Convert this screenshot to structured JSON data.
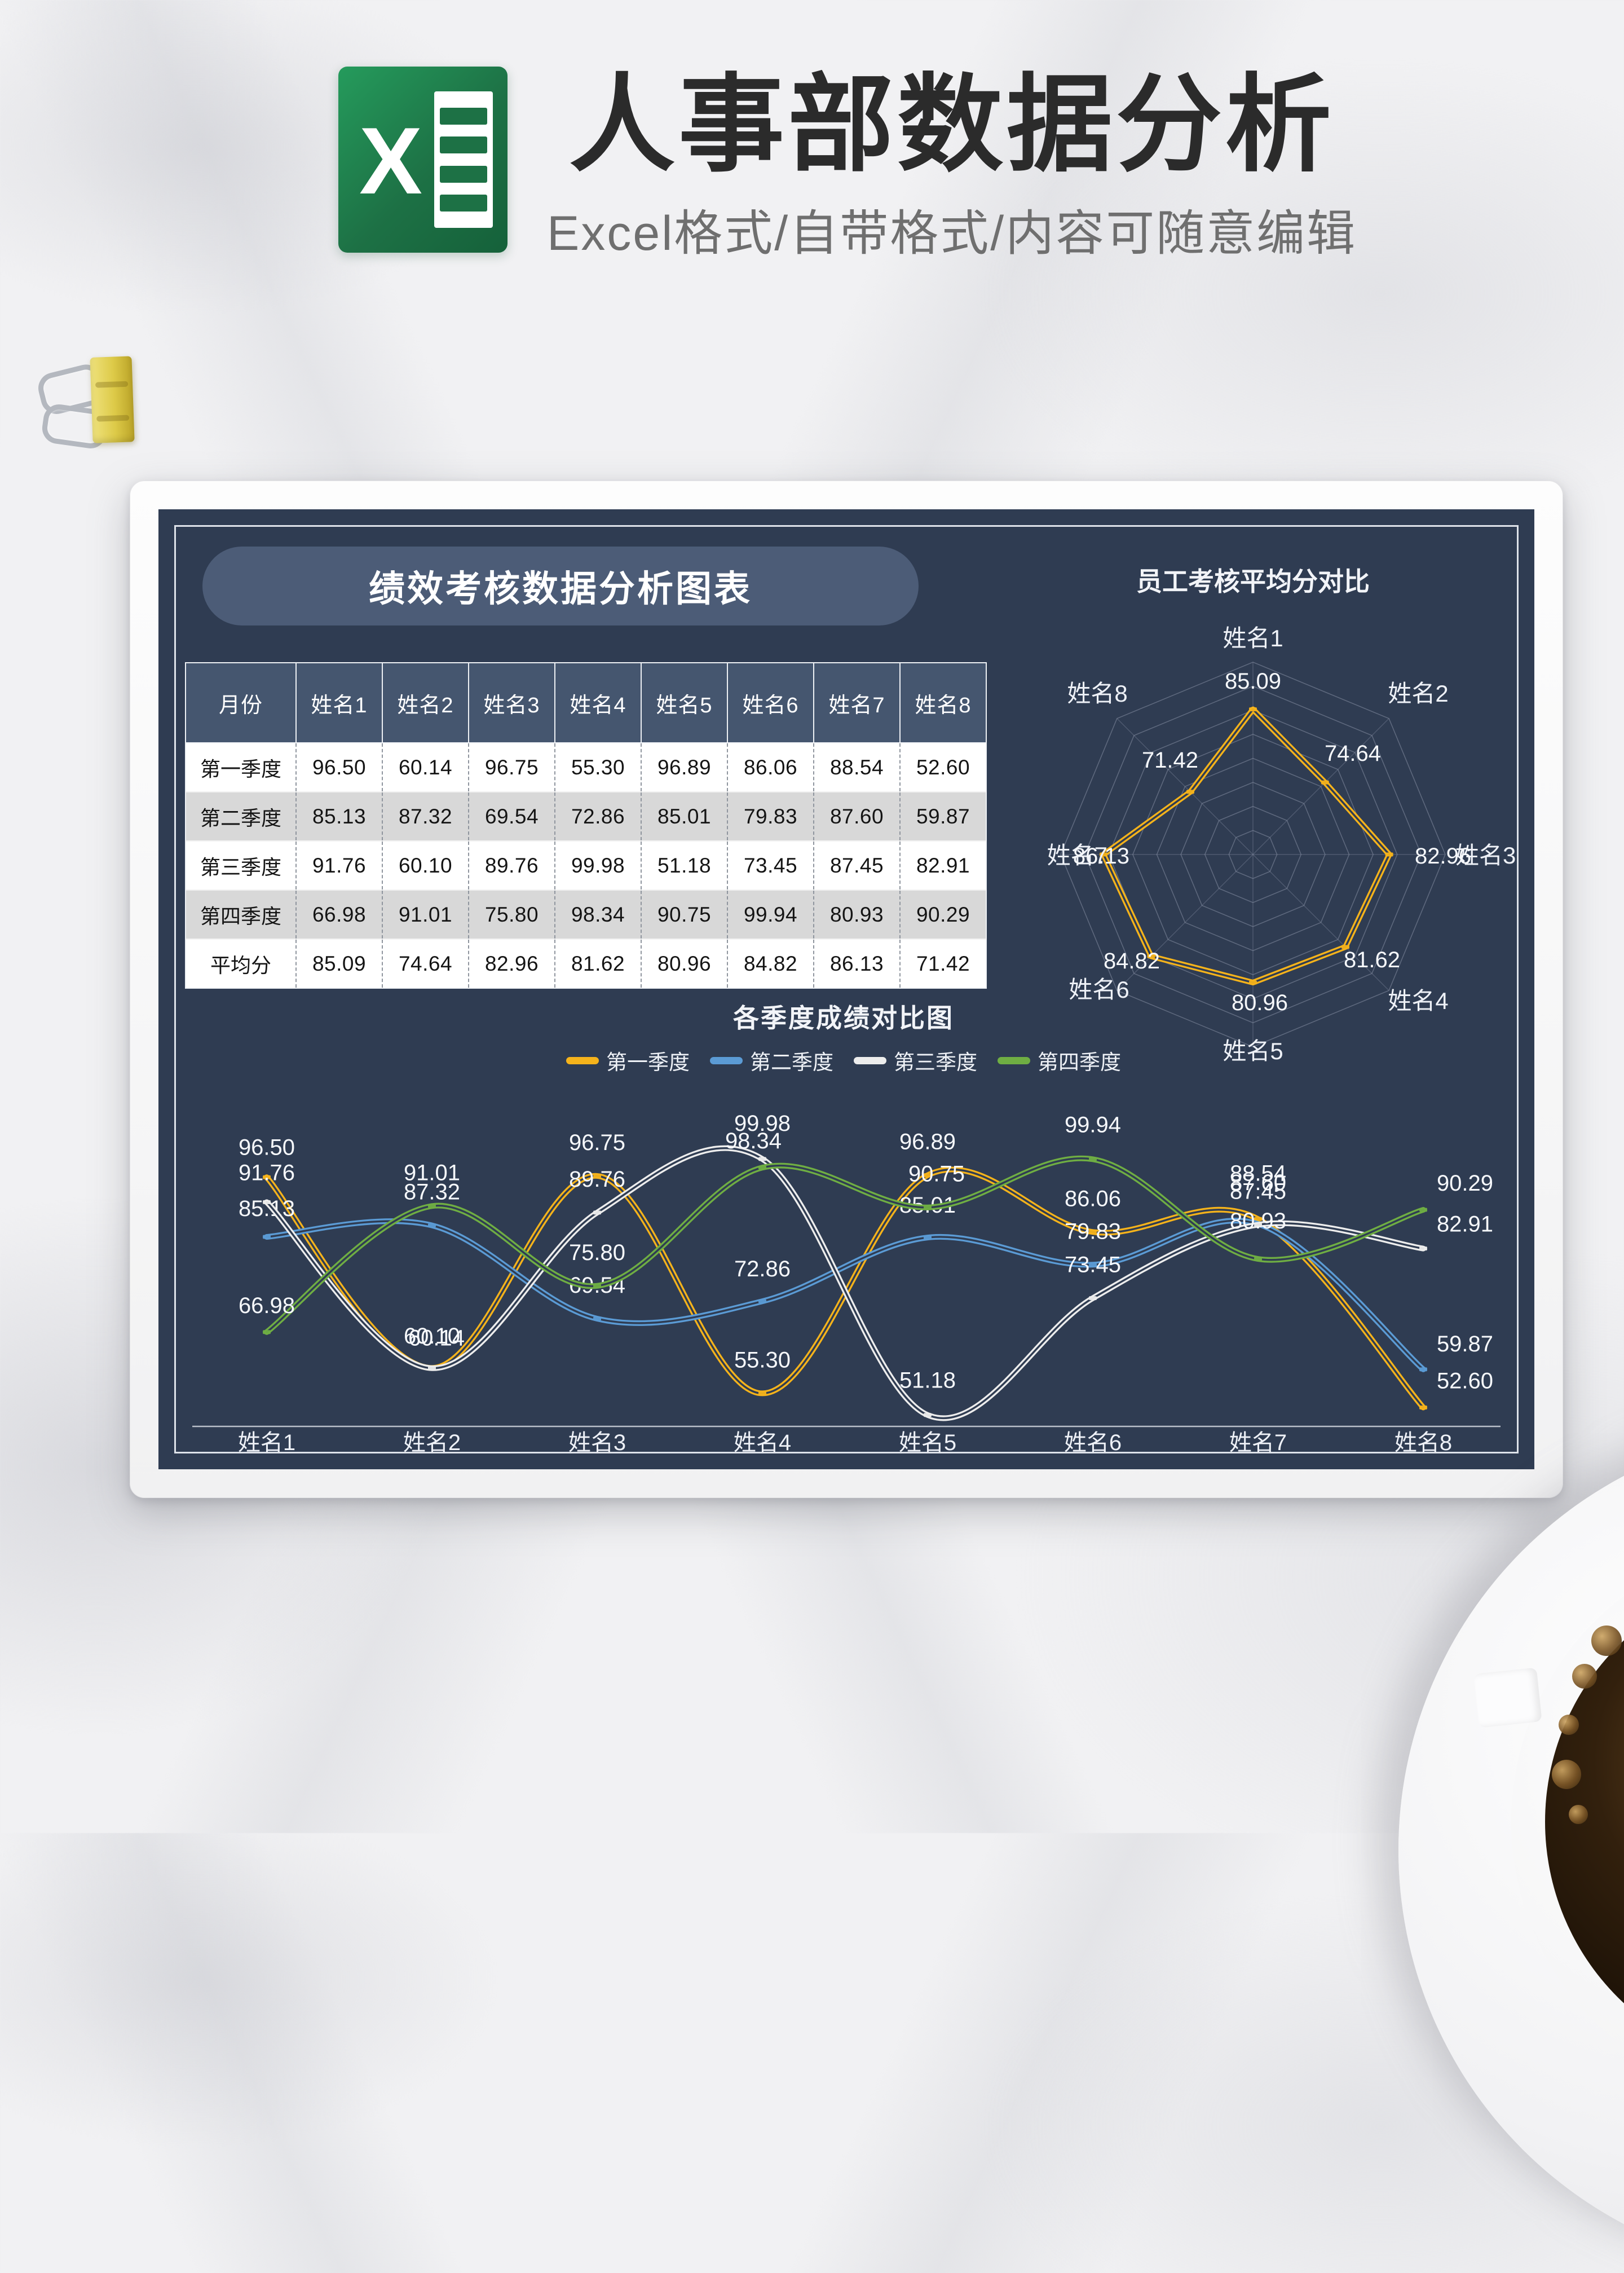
{
  "header": {
    "title": "人事部数据分析",
    "subtitle": "Excel格式/自带格式/内容可随意编辑",
    "logo_letter": "X",
    "logo_color": "#1D7145"
  },
  "card": {
    "title": "绩效考核数据分析图表",
    "background_color": "#2F3C52",
    "accent_color": "#4C5C77"
  },
  "table": {
    "columns": [
      "月份",
      "姓名1",
      "姓名2",
      "姓名3",
      "姓名4",
      "姓名5",
      "姓名6",
      "姓名7",
      "姓名8"
    ],
    "rows": [
      {
        "label": "第一季度",
        "values": [
          "96.50",
          "60.14",
          "96.75",
          "55.30",
          "96.89",
          "86.06",
          "88.54",
          "52.60"
        ]
      },
      {
        "label": "第二季度",
        "values": [
          "85.13",
          "87.32",
          "69.54",
          "72.86",
          "85.01",
          "79.83",
          "87.60",
          "59.87"
        ]
      },
      {
        "label": "第三季度",
        "values": [
          "91.76",
          "60.10",
          "89.76",
          "99.98",
          "51.18",
          "73.45",
          "87.45",
          "82.91"
        ]
      },
      {
        "label": "第四季度",
        "values": [
          "66.98",
          "91.01",
          "75.80",
          "98.34",
          "90.75",
          "99.94",
          "80.93",
          "90.29"
        ]
      },
      {
        "label": "平均分",
        "values": [
          "85.09",
          "74.64",
          "82.96",
          "81.62",
          "80.96",
          "84.82",
          "86.13",
          "71.42"
        ]
      }
    ]
  },
  "chart_data": [
    {
      "type": "radar",
      "title": "员工考核平均分对比",
      "categories": [
        "姓名1",
        "姓名2",
        "姓名3",
        "姓名4",
        "姓名5",
        "姓名6",
        "姓名7",
        "姓名8"
      ],
      "values": [
        85.09,
        74.64,
        82.96,
        81.62,
        80.96,
        84.82,
        86.13,
        71.42
      ],
      "series_color": "#F5B31B",
      "grid": true,
      "rings": 8,
      "value_range": [
        50,
        96.5
      ],
      "legend_position": "none"
    },
    {
      "type": "line",
      "title": "各季度成绩对比图",
      "categories": [
        "姓名1",
        "姓名2",
        "姓名3",
        "姓名4",
        "姓名5",
        "姓名6",
        "姓名7",
        "姓名8"
      ],
      "series": [
        {
          "name": "第一季度",
          "color": "#F5B31B",
          "values": [
            96.5,
            60.14,
            96.75,
            55.3,
            96.89,
            86.06,
            88.54,
            52.6
          ]
        },
        {
          "name": "第二季度",
          "color": "#5B9BD5",
          "values": [
            85.13,
            87.32,
            69.54,
            72.86,
            85.01,
            79.83,
            87.6,
            59.87
          ]
        },
        {
          "name": "第三季度",
          "color": "#EDEDED",
          "values": [
            91.76,
            60.1,
            89.76,
            99.98,
            51.18,
            73.45,
            87.45,
            82.91
          ]
        },
        {
          "name": "第四季度",
          "color": "#6FAE43",
          "values": [
            66.98,
            91.01,
            75.8,
            98.34,
            90.75,
            99.94,
            80.93,
            90.29
          ]
        }
      ],
      "ylim": [
        49,
        105
      ],
      "grid": false,
      "legend_position": "top",
      "data_labels": true
    }
  ]
}
